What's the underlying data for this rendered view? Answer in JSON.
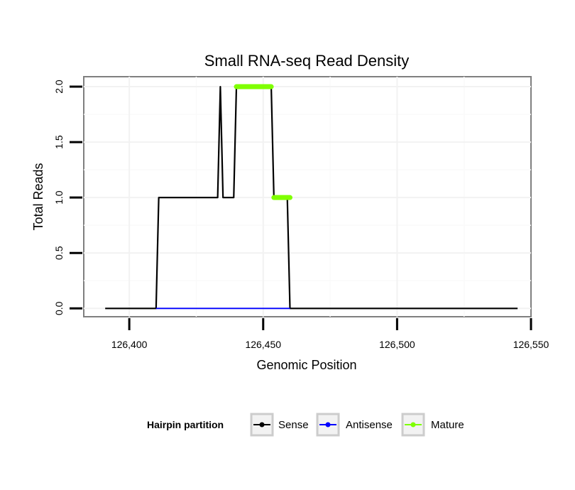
{
  "chart_data": {
    "type": "line",
    "title": "Small RNA-seq Read Density",
    "xlabel": "Genomic Position",
    "ylabel": "Total Reads",
    "xlim": [
      126383,
      126550
    ],
    "ylim": [
      -0.075,
      2.09
    ],
    "x_ticks": [
      126400,
      126450,
      126500,
      126550
    ],
    "x_tick_labels": [
      "126,400",
      "126,450",
      "126,500",
      "126,550"
    ],
    "y_ticks": [
      0,
      0.5,
      1,
      1.5,
      2
    ],
    "y_tick_labels": [
      "0.0",
      "0.5",
      "1.0",
      "1.5",
      "2.0"
    ],
    "grid": true,
    "legend": {
      "title": "Hairpin partition",
      "position": "bottom",
      "entries": [
        "Sense",
        "Antisense",
        "Mature"
      ]
    },
    "series": [
      {
        "name": "Sense",
        "color": "#000000",
        "x": [
          126391,
          126410,
          126411,
          126433,
          126434,
          126435,
          126439,
          126440,
          126453,
          126454,
          126459,
          126460,
          126545
        ],
        "values": [
          0,
          0,
          1,
          1,
          2,
          1,
          1,
          2,
          2,
          1,
          1,
          0,
          0
        ]
      },
      {
        "name": "Antisense",
        "color": "#0000ff",
        "x": [
          126410,
          126460
        ],
        "values": [
          0,
          0
        ]
      },
      {
        "name": "Mature",
        "color": "#7fff00",
        "segments": [
          {
            "x": [
              126440,
              126453
            ],
            "values": [
              2,
              2
            ]
          },
          {
            "x": [
              126454,
              126460
            ],
            "values": [
              1,
              1
            ]
          }
        ]
      }
    ]
  }
}
